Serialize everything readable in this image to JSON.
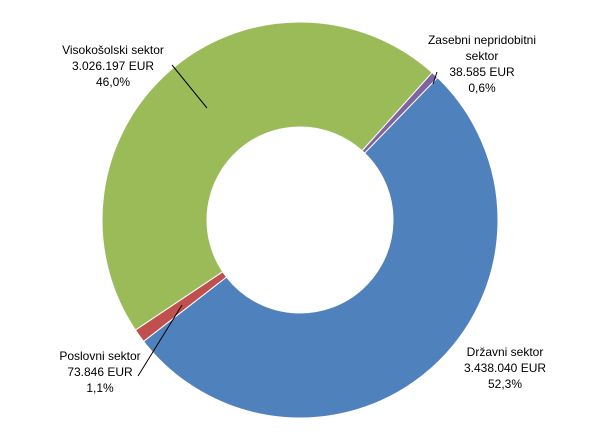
{
  "chart_data": {
    "type": "donut",
    "categories": [
      "Državni sektor",
      "Poslovni sektor",
      "Visokošolski sektor",
      "Zasebni nepridobitni sektor"
    ],
    "values": [
      3438040,
      73846,
      3026197,
      38585
    ],
    "value_labels": [
      "3.438.040 EUR",
      "73.846 EUR",
      "3.026.197 EUR",
      "38.585 EUR"
    ],
    "percentages": [
      52.3,
      1.1,
      46.0,
      0.6
    ],
    "percentage_labels": [
      "52,3%",
      "1,1%",
      "46,0%",
      "0,6%"
    ],
    "colors": [
      "#4f81bd",
      "#c0504d",
      "#9bbb59",
      "#8064a2"
    ]
  }
}
